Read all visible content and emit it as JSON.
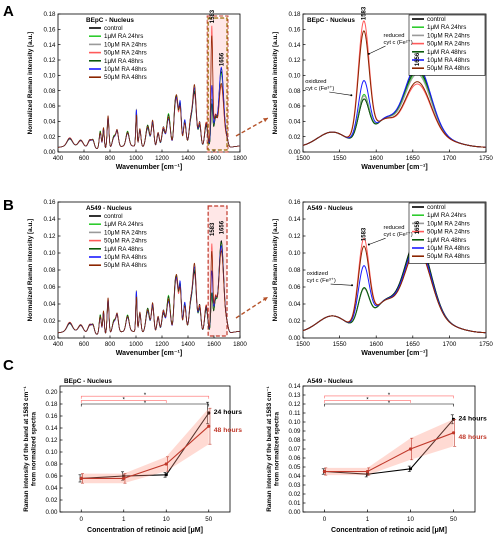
{
  "panel_labels": [
    "A",
    "B",
    "C"
  ],
  "chart_data": [
    {
      "id": "A-left",
      "type": "line",
      "title": "BEpC - Nucleus",
      "xlabel": "Wavenumber [cm⁻¹]",
      "ylabel": "Normalized Raman intensity [a.u.]",
      "xlim": [
        400,
        1800
      ],
      "ylim": [
        0,
        0.18
      ],
      "xticks": [
        400,
        600,
        800,
        1000,
        1200,
        1400,
        1600,
        1800
      ],
      "yticks": [
        0,
        0.02,
        0.04,
        0.06,
        0.08,
        0.1,
        0.12,
        0.14,
        0.16,
        0.18
      ],
      "yticklabels": [
        "0.00",
        "0.02",
        "0.04",
        "0.06",
        "0.08",
        "0.10",
        "0.12",
        "0.14",
        "0.16",
        "0.18"
      ],
      "legend_position": "top-left",
      "peak_labels": [
        {
          "x": 1583,
          "y": 0.168,
          "text": "1583"
        },
        {
          "x": 1656,
          "y": 0.112,
          "text": "1656"
        }
      ],
      "highlight_range": [
        1555,
        1700
      ],
      "series": [
        {
          "name": "control",
          "color": "#000000",
          "i1583": 0.056,
          "i1656": 0.1
        },
        {
          "name": "1μM RA 24hrs",
          "color": "#2ecc2e",
          "i1583": 0.062,
          "i1656": 0.098
        },
        {
          "name": "10μM RA 24hrs",
          "color": "#9a9a9a",
          "i1583": 0.06,
          "i1656": 0.095
        },
        {
          "name": "50μM RA 24hrs",
          "color": "#ff5a5a",
          "i1583": 0.158,
          "i1656": 0.082
        },
        {
          "name": "1μM RA 48hrs",
          "color": "#0a5a0a",
          "i1583": 0.056,
          "i1656": 0.104
        },
        {
          "name": "10μM RA 48hrs",
          "color": "#1a1aff",
          "i1583": 0.08,
          "i1656": 0.106
        },
        {
          "name": "50μM RA 48hrs",
          "color": "#8b2500",
          "i1583": 0.145,
          "i1656": 0.085
        }
      ]
    },
    {
      "id": "A-right",
      "type": "line",
      "title": "BEpC - Nucleus",
      "xlabel": "Wavenumber [cm⁻¹]",
      "ylabel": "Normalized Raman intensity [a.u.]",
      "xlim": [
        1500,
        1750
      ],
      "ylim": [
        0,
        0.18
      ],
      "xticks": [
        1500,
        1550,
        1600,
        1650,
        1700,
        1750
      ],
      "yticks": [
        0,
        0.02,
        0.04,
        0.06,
        0.08,
        0.1,
        0.12,
        0.14,
        0.16,
        0.18
      ],
      "yticklabels": [
        "0.00",
        "0.02",
        "0.04",
        "0.06",
        "0.08",
        "0.10",
        "0.12",
        "0.14",
        "0.16",
        "0.18"
      ],
      "legend_position": "top-right",
      "peak_labels": [
        {
          "x": 1583,
          "y": 0.172,
          "text": "1583"
        },
        {
          "x": 1656,
          "y": 0.112,
          "text": "1656"
        }
      ],
      "annotations": [
        {
          "text": "reduced",
          "text2": "cyt c (Fe²⁺)",
          "x": 1610,
          "y": 0.15,
          "ax": 1590,
          "ay": 0.128
        },
        {
          "text": "oxidized",
          "text2": "cyt c (Fe³⁺)",
          "x": 1503,
          "y": 0.09,
          "ax": 1566,
          "ay": 0.074
        }
      ],
      "series": [
        {
          "name": "control",
          "color": "#000000",
          "i1583": 0.056,
          "i1656": 0.1
        },
        {
          "name": "1μM RA 24hrs",
          "color": "#2ecc2e",
          "i1583": 0.062,
          "i1656": 0.098
        },
        {
          "name": "10μM RA 24hrs",
          "color": "#9a9a9a",
          "i1583": 0.06,
          "i1656": 0.095
        },
        {
          "name": "50μM RA 24hrs",
          "color": "#ff5a5a",
          "i1583": 0.158,
          "i1656": 0.082
        },
        {
          "name": "1μM RA 48hrs",
          "color": "#0a5a0a",
          "i1583": 0.056,
          "i1656": 0.104
        },
        {
          "name": "10μM RA 48hrs",
          "color": "#1a1aff",
          "i1583": 0.08,
          "i1656": 0.106
        },
        {
          "name": "50μM RA 48hrs",
          "color": "#8b2500",
          "i1583": 0.145,
          "i1656": 0.085
        }
      ]
    },
    {
      "id": "B-left",
      "type": "line",
      "title": "A549 - Nucleus",
      "xlabel": "Wavenumber [cm⁻¹]",
      "ylabel": "Normalized Raman intensity [a.u.]",
      "xlim": [
        400,
        1800
      ],
      "ylim": [
        0,
        0.16
      ],
      "xticks": [
        400,
        600,
        800,
        1000,
        1200,
        1400,
        1600,
        1800
      ],
      "yticks": [
        0,
        0.02,
        0.04,
        0.06,
        0.08,
        0.1,
        0.12,
        0.14,
        0.16
      ],
      "yticklabels": [
        "0.00",
        "0.02",
        "0.04",
        "0.06",
        "0.08",
        "0.10",
        "0.12",
        "0.14",
        "0.16"
      ],
      "legend_position": "top-left",
      "peak_labels": [
        {
          "x": 1583,
          "y": 0.12,
          "text": "1583"
        },
        {
          "x": 1656,
          "y": 0.122,
          "text": "1656"
        }
      ],
      "highlight_range": [
        1555,
        1700
      ],
      "series": [
        {
          "name": "control",
          "color": "#000000",
          "i1583": 0.046,
          "i1656": 0.11
        },
        {
          "name": "1μM RA 24hrs",
          "color": "#2ecc2e",
          "i1583": 0.046,
          "i1656": 0.1
        },
        {
          "name": "10μM RA 24hrs",
          "color": "#9a9a9a",
          "i1583": 0.045,
          "i1656": 0.102
        },
        {
          "name": "50μM RA 24hrs",
          "color": "#ff5a5a",
          "i1583": 0.104,
          "i1656": 0.1
        },
        {
          "name": "1μM RA 48hrs",
          "color": "#0a5a0a",
          "i1583": 0.046,
          "i1656": 0.108
        },
        {
          "name": "10μM RA 48hrs",
          "color": "#1a1aff",
          "i1583": 0.072,
          "i1656": 0.104
        },
        {
          "name": "50μM RA 48hrs",
          "color": "#8b2500",
          "i1583": 0.095,
          "i1656": 0.098
        }
      ]
    },
    {
      "id": "B-right",
      "type": "line",
      "title": "A549 - Nucleus",
      "xlabel": "Wavenumber [cm⁻¹]",
      "ylabel": "Normalized Raman intensity [a.u.]",
      "xlim": [
        1500,
        1750
      ],
      "ylim": [
        0,
        0.16
      ],
      "xticks": [
        1500,
        1550,
        1600,
        1650,
        1700,
        1750
      ],
      "yticks": [
        0,
        0.02,
        0.04,
        0.06,
        0.08,
        0.1,
        0.12,
        0.14,
        0.16
      ],
      "yticklabels": [
        "0.00",
        "0.02",
        "0.04",
        "0.06",
        "0.08",
        "0.10",
        "0.12",
        "0.14",
        "0.16"
      ],
      "legend_position": "top-right",
      "peak_labels": [
        {
          "x": 1583,
          "y": 0.114,
          "text": "1583"
        },
        {
          "x": 1656,
          "y": 0.122,
          "text": "1656"
        }
      ],
      "annotations": [
        {
          "text": "reduced",
          "text2": "cyt c (Fe²⁺)",
          "x": 1610,
          "y": 0.128,
          "ax": 1590,
          "ay": 0.11
        },
        {
          "text": "oxidized",
          "text2": "cyt c (Fe³⁺)",
          "x": 1505,
          "y": 0.074,
          "ax": 1567,
          "ay": 0.062
        }
      ],
      "series": [
        {
          "name": "control",
          "color": "#000000",
          "i1583": 0.046,
          "i1656": 0.11
        },
        {
          "name": "1μM RA 24hrs",
          "color": "#2ecc2e",
          "i1583": 0.046,
          "i1656": 0.1
        },
        {
          "name": "10μM RA 24hrs",
          "color": "#9a9a9a",
          "i1583": 0.045,
          "i1656": 0.102
        },
        {
          "name": "50μM RA 24hrs",
          "color": "#ff5a5a",
          "i1583": 0.104,
          "i1656": 0.1
        },
        {
          "name": "1μM RA 48hrs",
          "color": "#0a5a0a",
          "i1583": 0.046,
          "i1656": 0.108
        },
        {
          "name": "10μM RA 48hrs",
          "color": "#1a1aff",
          "i1583": 0.072,
          "i1656": 0.104
        },
        {
          "name": "50μM RA 48hrs",
          "color": "#8b2500",
          "i1583": 0.095,
          "i1656": 0.098
        }
      ]
    },
    {
      "id": "C-left",
      "type": "line",
      "title": "BEpC - Nucleus",
      "xlabel": "Concentration of retinoic acid [μM]",
      "ylabel": "Raman intensity of the band at 1583 cm⁻¹ from normalized spectra",
      "categories": [
        "0",
        "1",
        "10",
        "50"
      ],
      "ylim": [
        0,
        0.21
      ],
      "yticks": [
        0,
        0.02,
        0.04,
        0.06,
        0.08,
        0.1,
        0.12,
        0.14,
        0.16,
        0.18,
        0.2
      ],
      "yticklabels": [
        "0.00",
        "0.02",
        "0.04",
        "0.06",
        "0.08",
        "0.10",
        "0.12",
        "0.14",
        "0.16",
        "0.18",
        "0.20"
      ],
      "series": [
        {
          "name": "24 hours",
          "color": "#000000",
          "values": [
            0.056,
            0.06,
            0.062,
            0.165
          ],
          "errors": [
            0.006,
            0.007,
            0.004,
            0.018
          ]
        },
        {
          "name": "48 hours",
          "color": "#c0392b",
          "values": [
            0.056,
            0.056,
            0.08,
            0.143
          ],
          "errors": [
            0.008,
            0.008,
            0.012,
            0.03
          ]
        }
      ],
      "significance": [
        {
          "from": 0,
          "to": 3,
          "level": 0.193,
          "text": "*",
          "color": "#ff6a6a"
        },
        {
          "from": 0,
          "to": 2,
          "level": 0.186,
          "text": "*",
          "color": "#ff6a6a"
        },
        {
          "from": 0,
          "to": 3,
          "level": 0.18,
          "text": "*",
          "color": "#000000"
        }
      ]
    },
    {
      "id": "C-right",
      "type": "line",
      "title": "A549 - Nucleus",
      "xlabel": "Concentration of retinoic acid [μM]",
      "ylabel": "Raman intensity of the band at 1583 cm⁻¹ from normalized spectra",
      "categories": [
        "0",
        "1",
        "10",
        "50"
      ],
      "ylim": [
        0,
        0.14
      ],
      "yticks": [
        0,
        0.01,
        0.02,
        0.03,
        0.04,
        0.05,
        0.06,
        0.07,
        0.08,
        0.09,
        0.1,
        0.11,
        0.12,
        0.13,
        0.14
      ],
      "yticklabels": [
        "0.00",
        "0.01",
        "0.02",
        "0.03",
        "0.04",
        "0.05",
        "0.06",
        "0.07",
        "0.08",
        "0.09",
        "0.10",
        "0.11",
        "0.12",
        "0.13",
        "0.14"
      ],
      "series": [
        {
          "name": "24 hours",
          "color": "#000000",
          "values": [
            0.045,
            0.042,
            0.048,
            0.103
          ],
          "errors": [
            0.003,
            0.003,
            0.003,
            0.005
          ]
        },
        {
          "name": "48 hours",
          "color": "#c0392b",
          "values": [
            0.045,
            0.045,
            0.07,
            0.088
          ],
          "errors": [
            0.004,
            0.004,
            0.012,
            0.015
          ]
        }
      ],
      "significance": [
        {
          "from": 0,
          "to": 3,
          "level": 0.129,
          "text": "*",
          "color": "#ff6a6a"
        },
        {
          "from": 0,
          "to": 2,
          "level": 0.124,
          "text": "*",
          "color": "#ff6a6a"
        },
        {
          "from": 0,
          "to": 3,
          "level": 0.12,
          "text": "*",
          "color": "#000000"
        }
      ]
    }
  ]
}
